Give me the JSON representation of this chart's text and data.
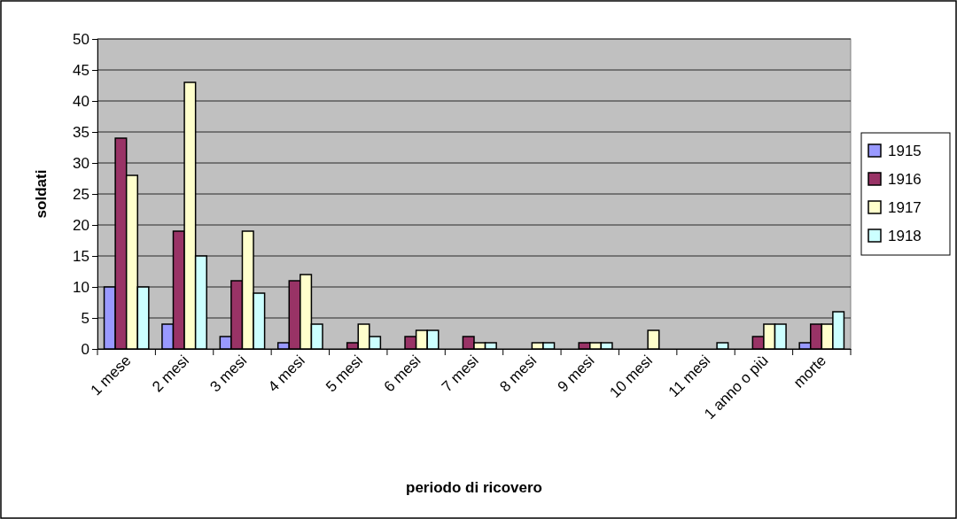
{
  "chart_data": {
    "type": "bar",
    "xlabel": "periodo di ricovero",
    "ylabel": "soldati",
    "categories": [
      "1 mese",
      "2 mesi",
      "3 mesi",
      "4 mesi",
      "5 mesi",
      "6 mesi",
      "7 mesi",
      "8 mesi",
      "9 mesi",
      "10 mesi",
      "11 mesi",
      "1 anno o più",
      "morte"
    ],
    "series": [
      {
        "name": "1915",
        "color": "#9999ff",
        "values": [
          10,
          4,
          2,
          1,
          0,
          0,
          0,
          0,
          0,
          0,
          0,
          0,
          1
        ]
      },
      {
        "name": "1916",
        "color": "#993366",
        "values": [
          34,
          19,
          11,
          11,
          1,
          2,
          2,
          0,
          1,
          0,
          0,
          2,
          4
        ]
      },
      {
        "name": "1917",
        "color": "#ffffcc",
        "values": [
          28,
          43,
          19,
          12,
          4,
          3,
          1,
          1,
          1,
          3,
          0,
          4,
          4
        ]
      },
      {
        "name": "1918",
        "color": "#ccffff",
        "values": [
          10,
          15,
          9,
          4,
          2,
          3,
          1,
          1,
          1,
          0,
          1,
          4,
          6
        ]
      }
    ],
    "ylim": [
      0,
      50
    ],
    "yticks": [
      0,
      5,
      10,
      15,
      20,
      25,
      30,
      35,
      40,
      45,
      50
    ],
    "grid": "y",
    "legend": "right"
  }
}
